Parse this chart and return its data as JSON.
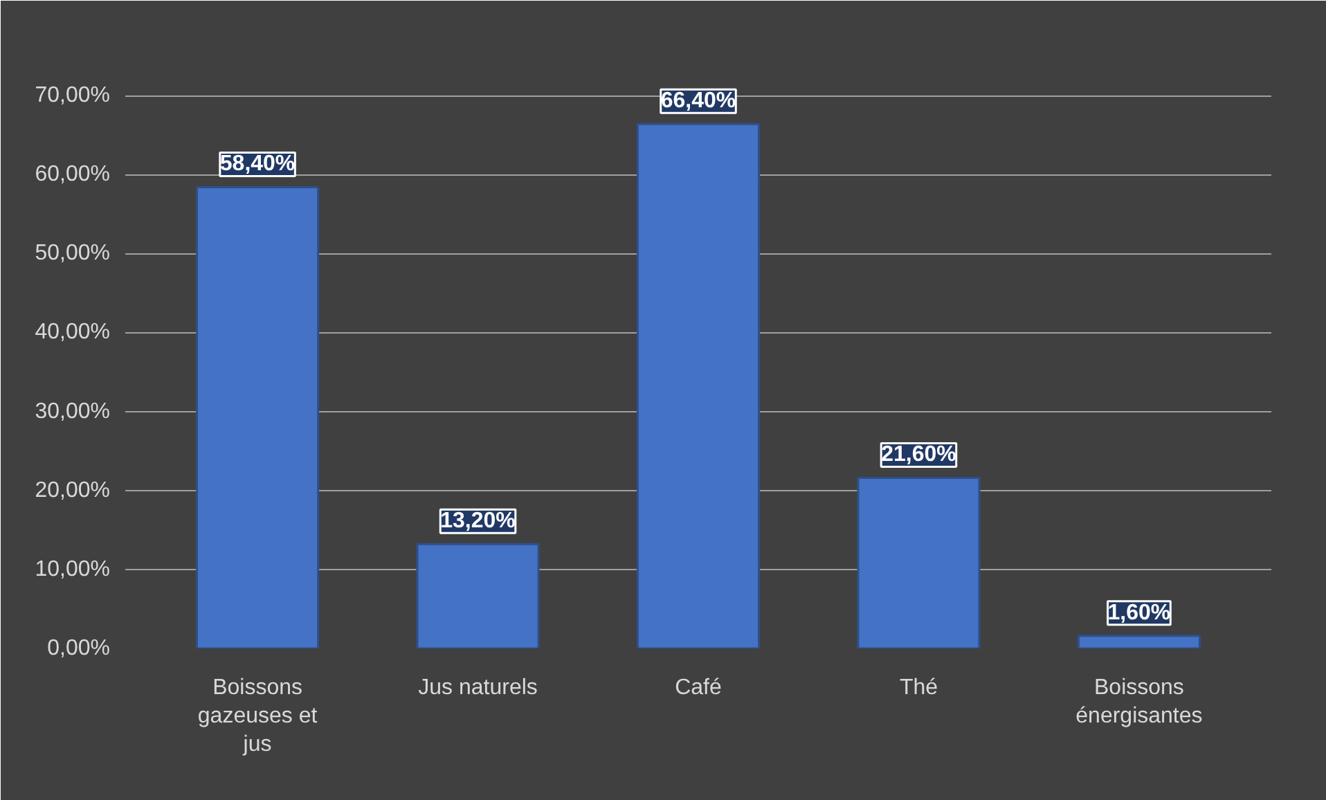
{
  "chart_data": {
    "type": "bar",
    "categories": [
      "Boissons gazeuses et jus",
      "Jus naturels",
      "Café",
      "Thé",
      "Boissons énergisantes"
    ],
    "values": [
      58.4,
      13.2,
      66.4,
      21.6,
      1.6
    ],
    "value_labels": [
      "58,40%",
      "13,20%",
      "66,40%",
      "21,60%",
      "1,60%"
    ],
    "color": "#4472c4",
    "ylim": [
      0,
      75
    ],
    "yticks": [
      {
        "value": 0,
        "label": "0,00%"
      },
      {
        "value": 10,
        "label": "10,00%"
      },
      {
        "value": 20,
        "label": "20,00%"
      },
      {
        "value": 30,
        "label": "30,00%"
      },
      {
        "value": 40,
        "label": "40,00%"
      },
      {
        "value": 50,
        "label": "50,00%"
      },
      {
        "value": 60,
        "label": "60,00%"
      },
      {
        "value": 70,
        "label": "70,00%"
      }
    ],
    "grid": "y"
  }
}
